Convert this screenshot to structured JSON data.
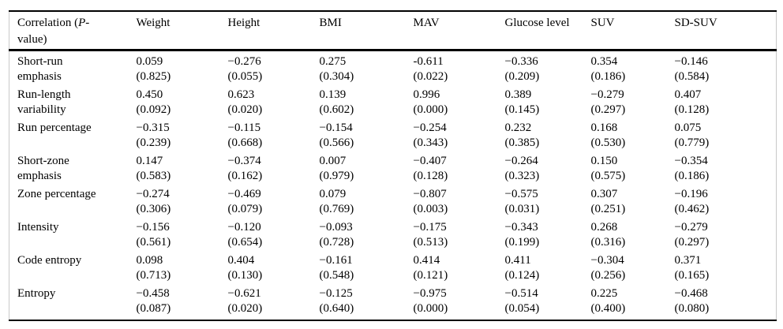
{
  "table": {
    "corner": {
      "prefix": "Correlation (",
      "italic": "P",
      "suffix": "-\nvalue)"
    },
    "columns": [
      "Weight",
      "Height",
      "BMI",
      "MAV",
      "Glucose level",
      "SUV",
      "SD-SUV"
    ],
    "rows": [
      {
        "label": "Short-run\nemphasis",
        "cells": [
          {
            "r": "0.059",
            "p": "(0.825)"
          },
          {
            "r": "−0.276",
            "p": "(0.055)"
          },
          {
            "r": "0.275",
            "p": "(0.304)"
          },
          {
            "r": "-0.611",
            "p": "(0.022)"
          },
          {
            "r": "−0.336",
            "p": "(0.209)"
          },
          {
            "r": "0.354",
            "p": "(0.186)"
          },
          {
            "r": "−0.146",
            "p": "(0.584)"
          }
        ]
      },
      {
        "label": "Run-length\nvariability",
        "cells": [
          {
            "r": "0.450",
            "p": "(0.092)"
          },
          {
            "r": "0.623",
            "p": "(0.020)"
          },
          {
            "r": "0.139",
            "p": "(0.602)"
          },
          {
            "r": "0.996",
            "p": "(0.000)"
          },
          {
            "r": "0.389",
            "p": "(0.145)"
          },
          {
            "r": "−0.279",
            "p": "(0.297)"
          },
          {
            "r": "0.407",
            "p": "(0.128)"
          }
        ]
      },
      {
        "label": "Run percentage",
        "cells": [
          {
            "r": "−0.315",
            "p": "(0.239)"
          },
          {
            "r": "−0.115",
            "p": "(0.668)"
          },
          {
            "r": "−0.154",
            "p": "(0.566)"
          },
          {
            "r": "−0.254",
            "p": "(0.343)"
          },
          {
            "r": "0.232",
            "p": "(0.385)"
          },
          {
            "r": "0.168",
            "p": "(0.530)"
          },
          {
            "r": "0.075",
            "p": "(0.779)"
          }
        ]
      },
      {
        "label": "Short-zone\nemphasis",
        "cells": [
          {
            "r": "0.147",
            "p": "(0.583)"
          },
          {
            "r": "−0.374",
            "p": "(0.162)"
          },
          {
            "r": "0.007",
            "p": "(0.979)"
          },
          {
            "r": "−0.407",
            "p": "(0.128)"
          },
          {
            "r": "−0.264",
            "p": "(0.323)"
          },
          {
            "r": "0.150",
            "p": "(0.575)"
          },
          {
            "r": "−0.354",
            "p": "(0.186)"
          }
        ]
      },
      {
        "label": "Zone percentage",
        "cells": [
          {
            "r": "−0.274",
            "p": "(0.306)"
          },
          {
            "r": "−0.469",
            "p": "(0.079)"
          },
          {
            "r": "0.079",
            "p": "(0.769)"
          },
          {
            "r": "−0.807",
            "p": "(0.003)"
          },
          {
            "r": "−0.575",
            "p": "(0.031)"
          },
          {
            "r": "0.307",
            "p": "(0.251)"
          },
          {
            "r": "−0.196",
            "p": "(0.462)"
          }
        ]
      },
      {
        "label": "Intensity",
        "cells": [
          {
            "r": "−0.156",
            "p": "(0.561)"
          },
          {
            "r": "−0.120",
            "p": "(0.654)"
          },
          {
            "r": "−0.093",
            "p": "(0.728)"
          },
          {
            "r": "−0.175",
            "p": "(0.513)"
          },
          {
            "r": "−0.343",
            "p": "(0.199)"
          },
          {
            "r": "0.268",
            "p": "(0.316)"
          },
          {
            "r": "−0.279",
            "p": "(0.297)"
          }
        ]
      },
      {
        "label": "Code entropy",
        "cells": [
          {
            "r": "0.098",
            "p": "(0.713)"
          },
          {
            "r": "0.404",
            "p": "(0.130)"
          },
          {
            "r": "−0.161",
            "p": "(0.548)"
          },
          {
            "r": "0.414",
            "p": "(0.121)"
          },
          {
            "r": "0.411",
            "p": "(0.124)"
          },
          {
            "r": "−0.304",
            "p": "(0.256)"
          },
          {
            "r": "0.371",
            "p": "(0.165)"
          }
        ]
      },
      {
        "label": "Entropy",
        "cells": [
          {
            "r": "−0.458",
            "p": "(0.087)"
          },
          {
            "r": "−0.621",
            "p": "(0.020)"
          },
          {
            "r": "−0.125",
            "p": "(0.640)"
          },
          {
            "r": "−0.975",
            "p": "(0.000)"
          },
          {
            "r": "−0.514",
            "p": "(0.054)"
          },
          {
            "r": "0.225",
            "p": "(0.400)"
          },
          {
            "r": "−0.468",
            "p": "(0.080)"
          }
        ]
      }
    ]
  }
}
